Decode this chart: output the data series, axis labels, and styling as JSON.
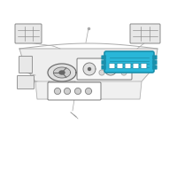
{
  "bg_color": "#ffffff",
  "highlight_color": "#29b6d8",
  "highlight_dark": "#1a8fab",
  "line_color": "#aaaaaa",
  "dark_line": "#666666",
  "med_line": "#999999",
  "component_fill": "#e8e8e8",
  "component_stroke": "#888888",
  "white": "#ffffff",
  "dash_fill": "#eeeeee",
  "dash_stroke": "#aaaaaa"
}
